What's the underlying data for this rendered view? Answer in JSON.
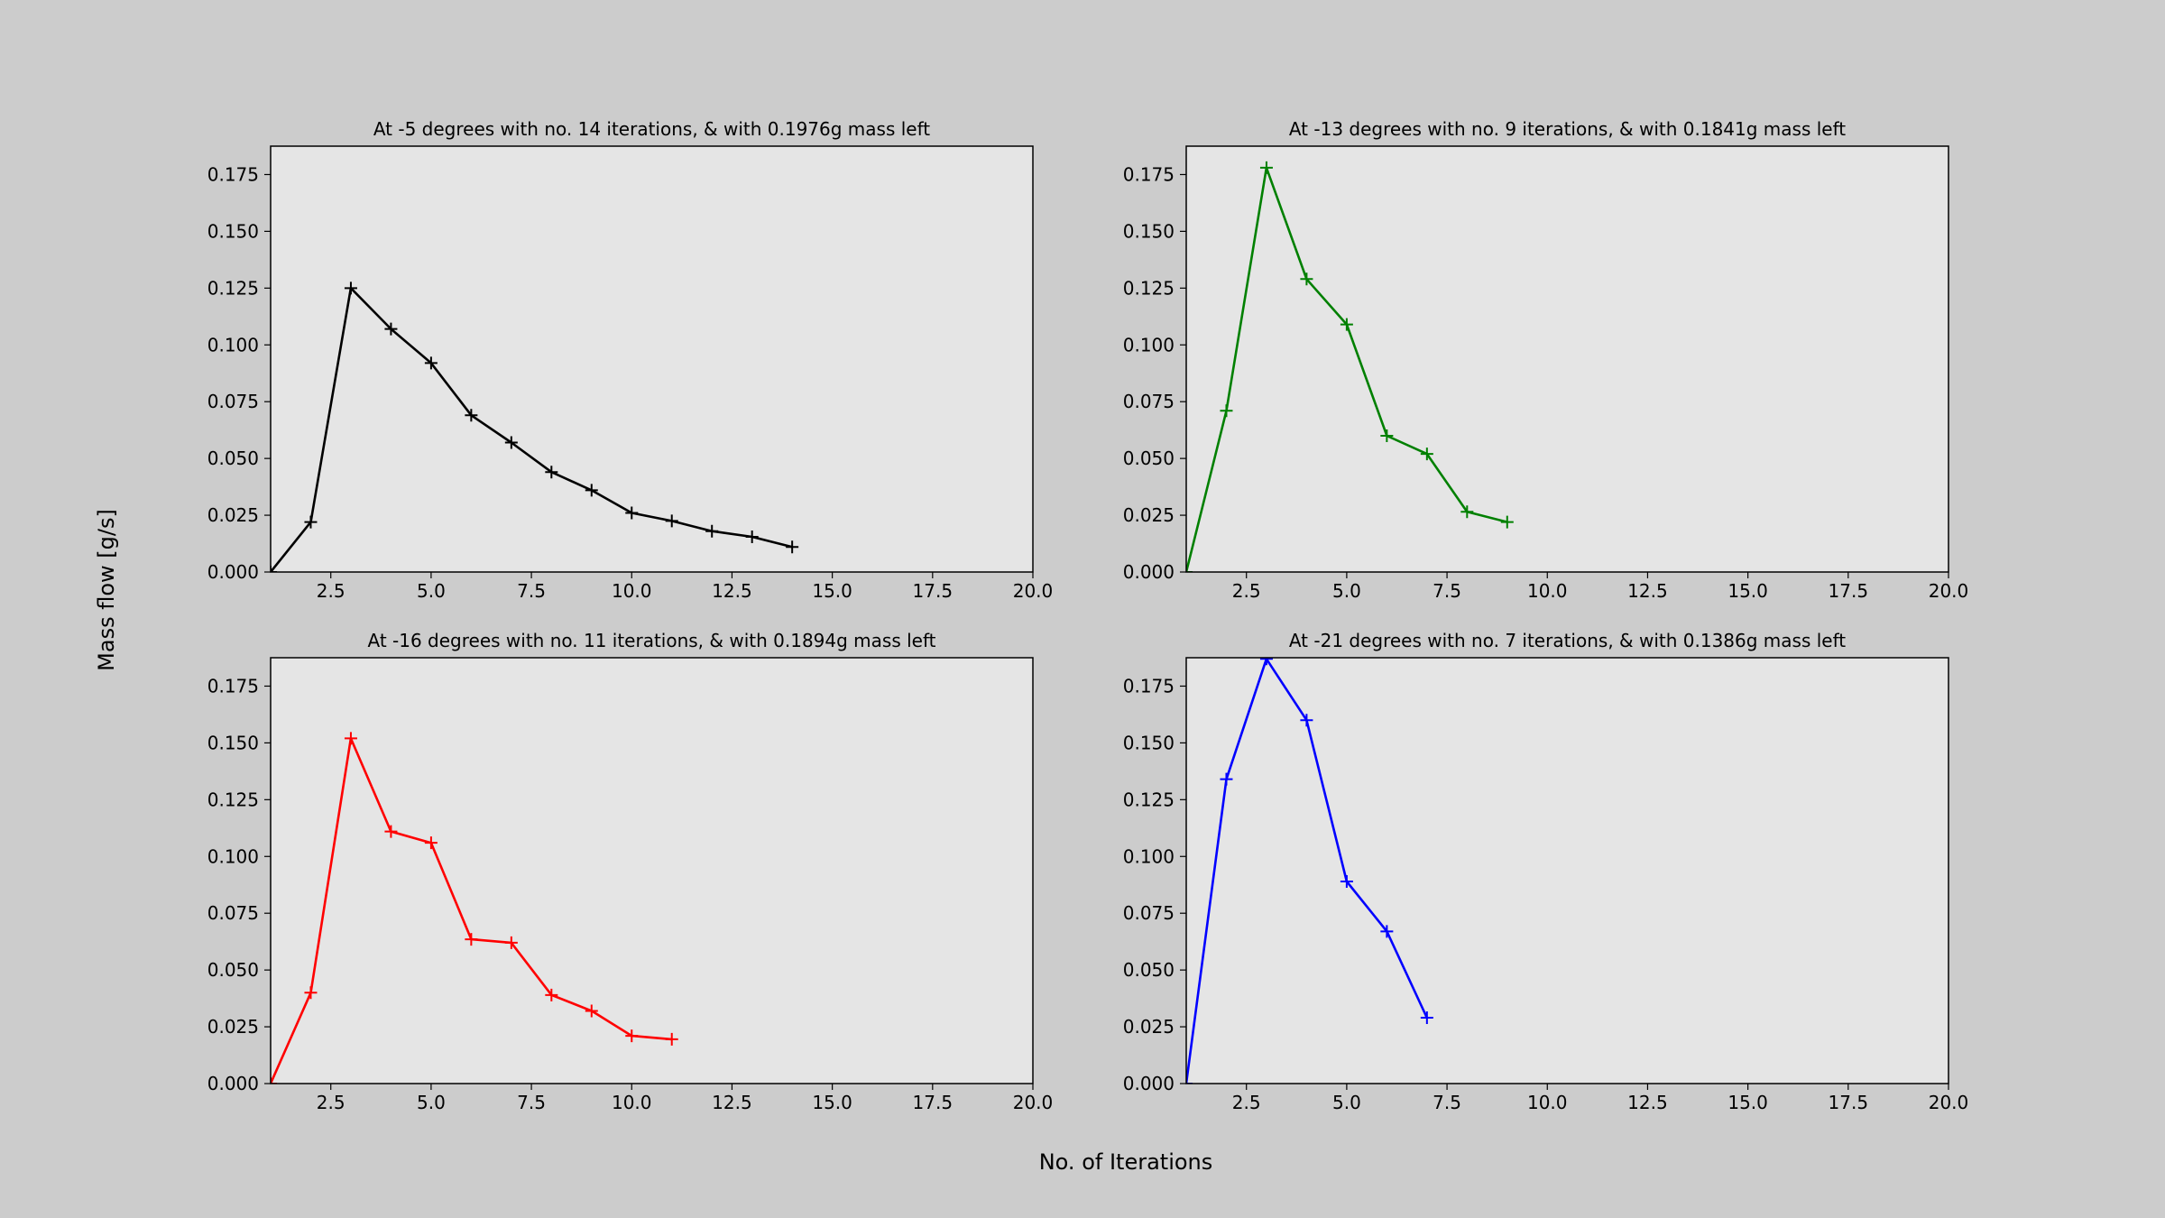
{
  "figure": {
    "ylabel": "Mass flow [g/s]",
    "xlabel": "No. of Iterations",
    "background": "#cccccc",
    "axes_background": "#e5e5e5"
  },
  "chart_data": [
    {
      "type": "line",
      "title": "At -5 degrees with no. 14 iterations, & with 0.1976g mass left",
      "color": "#000000",
      "marker": "+",
      "xlim": [
        1,
        20
      ],
      "ylim": [
        0,
        0.1875
      ],
      "xticks": [
        "2.5",
        "5.0",
        "7.5",
        "10.0",
        "12.5",
        "15.0",
        "17.5",
        "20.0"
      ],
      "yticks": [
        "0.000",
        "0.025",
        "0.050",
        "0.075",
        "0.100",
        "0.125",
        "0.150",
        "0.175"
      ],
      "x": [
        1,
        2,
        3,
        4,
        5,
        6,
        7,
        8,
        9,
        10,
        11,
        12,
        13,
        14
      ],
      "y": [
        0.0,
        0.022,
        0.125,
        0.107,
        0.092,
        0.069,
        0.057,
        0.044,
        0.036,
        0.026,
        0.0225,
        0.018,
        0.0155,
        0.011
      ]
    },
    {
      "type": "line",
      "title": "At -13 degrees with no. 9 iterations, & with 0.1841g mass left",
      "color": "#008000",
      "marker": "+",
      "xlim": [
        1,
        20
      ],
      "ylim": [
        0,
        0.1875
      ],
      "xticks": [
        "2.5",
        "5.0",
        "7.5",
        "10.0",
        "12.5",
        "15.0",
        "17.5",
        "20.0"
      ],
      "yticks": [
        "0.000",
        "0.025",
        "0.050",
        "0.075",
        "0.100",
        "0.125",
        "0.150",
        "0.175"
      ],
      "x": [
        1,
        2,
        3,
        4,
        5,
        6,
        7,
        8,
        9
      ],
      "y": [
        0.0,
        0.071,
        0.178,
        0.129,
        0.109,
        0.06,
        0.052,
        0.0265,
        0.022
      ]
    },
    {
      "type": "line",
      "title": "At -16 degrees with no. 11 iterations, & with 0.1894g mass left",
      "color": "#ff0000",
      "marker": "+",
      "xlim": [
        1,
        20
      ],
      "ylim": [
        0,
        0.1875
      ],
      "xticks": [
        "2.5",
        "5.0",
        "7.5",
        "10.0",
        "12.5",
        "15.0",
        "17.5",
        "20.0"
      ],
      "yticks": [
        "0.000",
        "0.025",
        "0.050",
        "0.075",
        "0.100",
        "0.125",
        "0.150",
        "0.175"
      ],
      "x": [
        1,
        2,
        3,
        4,
        5,
        6,
        7,
        8,
        9,
        10,
        11
      ],
      "y": [
        0.0,
        0.04,
        0.152,
        0.111,
        0.106,
        0.0635,
        0.062,
        0.039,
        0.032,
        0.021,
        0.0195
      ]
    },
    {
      "type": "line",
      "title": "At -21 degrees with no. 7 iterations, & with 0.1386g mass left",
      "color": "#0000ff",
      "marker": "+",
      "xlim": [
        1,
        20
      ],
      "ylim": [
        0,
        0.1875
      ],
      "xticks": [
        "2.5",
        "5.0",
        "7.5",
        "10.0",
        "12.5",
        "15.0",
        "17.5",
        "20.0"
      ],
      "yticks": [
        "0.000",
        "0.025",
        "0.050",
        "0.075",
        "0.100",
        "0.125",
        "0.150",
        "0.175"
      ],
      "x": [
        1,
        2,
        3,
        4,
        5,
        6,
        7
      ],
      "y": [
        0.0,
        0.134,
        0.187,
        0.16,
        0.089,
        0.067,
        0.029
      ]
    }
  ]
}
